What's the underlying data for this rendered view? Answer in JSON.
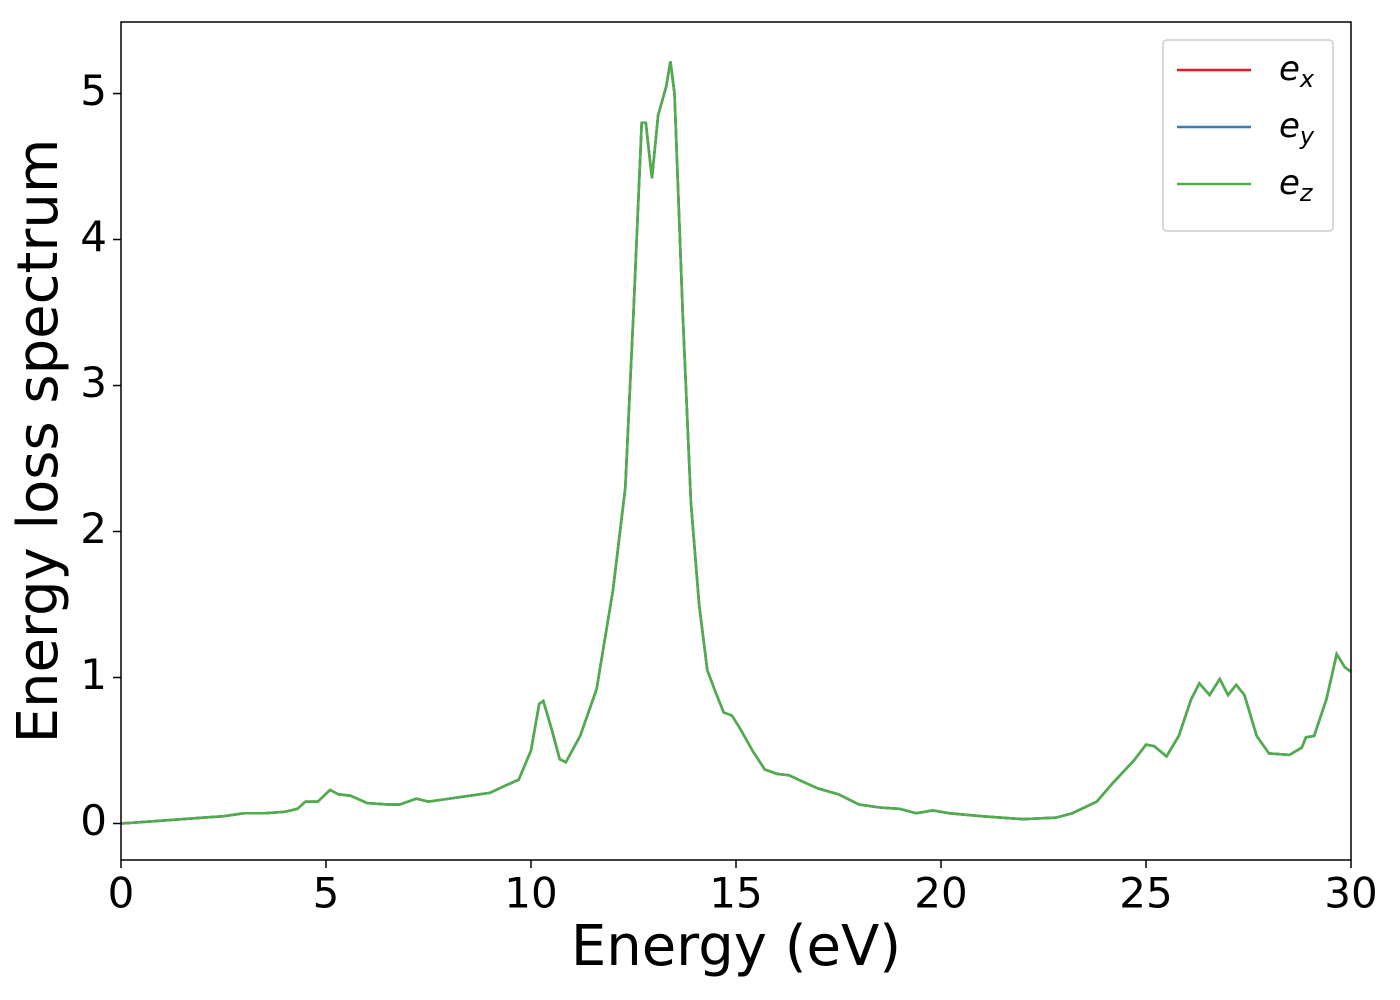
{
  "chart_data": {
    "type": "line",
    "x_label": "Energy (eV)",
    "y_label": "Energy loss spectrum",
    "x": [
      0,
      1,
      2,
      2.5,
      3,
      3.5,
      4,
      4.3,
      4.5,
      4.8,
      5.1,
      5.3,
      5.6,
      6,
      6.5,
      6.8,
      7.2,
      7.5,
      8,
      8.5,
      9,
      9.3,
      9.7,
      10,
      10.2,
      10.3,
      10.5,
      10.7,
      10.85,
      11.2,
      11.6,
      12,
      12.3,
      12.5,
      12.7,
      12.8,
      12.95,
      13.1,
      13.2,
      13.3,
      13.4,
      13.5,
      13.7,
      13.9,
      14.1,
      14.3,
      14.5,
      14.7,
      14.9,
      15.1,
      15.4,
      15.7,
      16,
      16.3,
      16.6,
      17,
      17.5,
      18,
      18.5,
      19,
      19.4,
      19.8,
      20.2,
      21,
      22,
      22.8,
      23.2,
      23.8,
      24.2,
      24.7,
      25,
      25.2,
      25.5,
      25.8,
      26.1,
      26.3,
      26.55,
      26.8,
      27,
      27.2,
      27.4,
      27.7,
      28,
      28.5,
      28.8,
      28.9,
      29.1,
      29.4,
      29.65,
      29.85,
      30
    ],
    "series": [
      {
        "name": "e_x",
        "color": "#e41a1c",
        "values": [
          0,
          0.02,
          0.04,
          0.05,
          0.07,
          0.07,
          0.08,
          0.1,
          0.15,
          0.15,
          0.23,
          0.2,
          0.19,
          0.14,
          0.13,
          0.13,
          0.17,
          0.15,
          0.17,
          0.19,
          0.21,
          0.25,
          0.3,
          0.5,
          0.82,
          0.84,
          0.65,
          0.44,
          0.42,
          0.6,
          0.92,
          1.6,
          2.3,
          3.5,
          4.8,
          4.8,
          4.42,
          4.85,
          4.95,
          5.05,
          5.22,
          5.0,
          3.5,
          2.2,
          1.5,
          1.05,
          0.9,
          0.76,
          0.74,
          0.65,
          0.5,
          0.37,
          0.34,
          0.33,
          0.29,
          0.24,
          0.2,
          0.13,
          0.11,
          0.1,
          0.07,
          0.09,
          0.07,
          0.05,
          0.03,
          0.04,
          0.07,
          0.15,
          0.28,
          0.43,
          0.54,
          0.53,
          0.46,
          0.6,
          0.85,
          0.96,
          0.88,
          0.99,
          0.88,
          0.95,
          0.88,
          0.6,
          0.48,
          0.47,
          0.52,
          0.59,
          0.6,
          0.85,
          1.16,
          1.07,
          1.04
        ]
      },
      {
        "name": "e_y",
        "color": "#377eb8",
        "values": [
          0,
          0.02,
          0.04,
          0.05,
          0.07,
          0.07,
          0.08,
          0.1,
          0.15,
          0.15,
          0.23,
          0.2,
          0.19,
          0.14,
          0.13,
          0.13,
          0.17,
          0.15,
          0.17,
          0.19,
          0.21,
          0.25,
          0.3,
          0.5,
          0.82,
          0.84,
          0.65,
          0.44,
          0.42,
          0.6,
          0.92,
          1.6,
          2.3,
          3.5,
          4.8,
          4.8,
          4.42,
          4.85,
          4.95,
          5.05,
          5.22,
          5.0,
          3.5,
          2.2,
          1.5,
          1.05,
          0.9,
          0.76,
          0.74,
          0.65,
          0.5,
          0.37,
          0.34,
          0.33,
          0.29,
          0.24,
          0.2,
          0.13,
          0.11,
          0.1,
          0.07,
          0.09,
          0.07,
          0.05,
          0.03,
          0.04,
          0.07,
          0.15,
          0.28,
          0.43,
          0.54,
          0.53,
          0.46,
          0.6,
          0.85,
          0.96,
          0.88,
          0.99,
          0.88,
          0.95,
          0.88,
          0.6,
          0.48,
          0.47,
          0.52,
          0.59,
          0.6,
          0.85,
          1.16,
          1.07,
          1.04
        ]
      },
      {
        "name": "e_z",
        "color": "#4daf4a",
        "values": [
          0,
          0.02,
          0.04,
          0.05,
          0.07,
          0.07,
          0.08,
          0.1,
          0.15,
          0.15,
          0.23,
          0.2,
          0.19,
          0.14,
          0.13,
          0.13,
          0.17,
          0.15,
          0.17,
          0.19,
          0.21,
          0.25,
          0.3,
          0.5,
          0.82,
          0.84,
          0.65,
          0.44,
          0.42,
          0.6,
          0.92,
          1.6,
          2.3,
          3.5,
          4.8,
          4.8,
          4.42,
          4.85,
          4.95,
          5.05,
          5.22,
          5.0,
          3.5,
          2.2,
          1.5,
          1.05,
          0.9,
          0.76,
          0.74,
          0.65,
          0.5,
          0.37,
          0.34,
          0.33,
          0.29,
          0.24,
          0.2,
          0.13,
          0.11,
          0.1,
          0.07,
          0.09,
          0.07,
          0.05,
          0.03,
          0.04,
          0.07,
          0.15,
          0.28,
          0.43,
          0.54,
          0.53,
          0.46,
          0.6,
          0.85,
          0.96,
          0.88,
          0.99,
          0.88,
          0.95,
          0.88,
          0.6,
          0.48,
          0.47,
          0.52,
          0.59,
          0.6,
          0.85,
          1.16,
          1.07,
          1.04
        ]
      }
    ],
    "xlim": [
      0,
      30
    ],
    "xticks": [
      0,
      5,
      10,
      15,
      20,
      25,
      30
    ],
    "ylim": [
      -0.25,
      5.49
    ],
    "yticks": [
      0,
      1,
      2,
      3,
      4,
      5
    ],
    "grid": false,
    "legend": "upper right"
  }
}
